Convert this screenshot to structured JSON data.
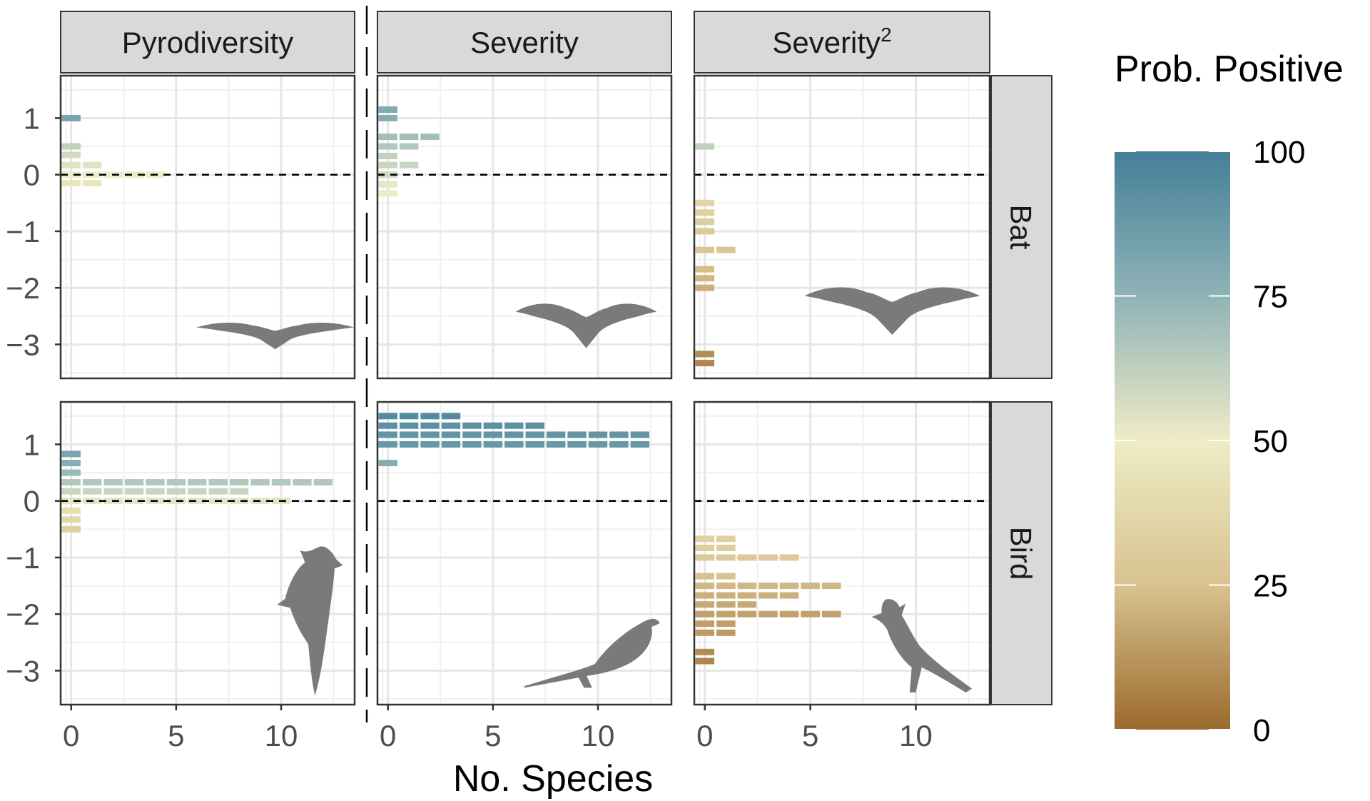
{
  "chart_data": {
    "type": "bar",
    "subtype": "stacked-dotplot-facet-grid",
    "xlabel": "No. Species",
    "ylabel": "",
    "x_ticks": [
      0,
      5,
      10
    ],
    "y_ticks": [
      1,
      0,
      -1,
      -2,
      -3
    ],
    "y_tick_labels": [
      "1",
      "0",
      "−1",
      "−2",
      "−3"
    ],
    "xlim": [
      -0.5,
      13.5
    ],
    "ylim": [
      -3.6,
      1.75
    ],
    "grid": true,
    "reference_line": {
      "y": 0,
      "style": "dashed"
    },
    "facet_columns": [
      {
        "label": "Pyrodiversity"
      },
      {
        "label": "Severity"
      },
      {
        "label": "Severity",
        "superscript": "2"
      }
    ],
    "facet_rows": [
      {
        "label": "Bat"
      },
      {
        "label": "Bird"
      }
    ],
    "legend": {
      "title": "Prob. Positive",
      "position": "right",
      "min": 0,
      "max": 100,
      "ticks": [
        100,
        75,
        50,
        25,
        0
      ],
      "colors": [
        "#9b6a2d",
        "#d8c28f",
        "#eeecc6",
        "#8fb3b6",
        "#447f98"
      ]
    },
    "panels": [
      {
        "row": "Bat",
        "col": "Pyrodiversity",
        "silhouette": "bat",
        "bins": [
          {
            "y": 1.0,
            "count": 1,
            "prob": 82
          },
          {
            "y": 0.5,
            "count": 1,
            "prob": 62
          },
          {
            "y": 0.35,
            "count": 1,
            "prob": 58
          },
          {
            "y": 0.17,
            "count": 2,
            "prob": 54
          },
          {
            "y": 0.0,
            "count": 5,
            "prob": 50
          },
          {
            "y": -0.15,
            "count": 2,
            "prob": 46
          }
        ]
      },
      {
        "row": "Bat",
        "col": "Severity",
        "silhouette": "bat",
        "bins": [
          {
            "y": 1.15,
            "count": 1,
            "prob": 80
          },
          {
            "y": 1.0,
            "count": 1,
            "prob": 78
          },
          {
            "y": 0.67,
            "count": 3,
            "prob": 70
          },
          {
            "y": 0.5,
            "count": 2,
            "prob": 66
          },
          {
            "y": 0.33,
            "count": 1,
            "prob": 62
          },
          {
            "y": 0.17,
            "count": 2,
            "prob": 60
          },
          {
            "y": 0.0,
            "count": 1,
            "prob": 58
          },
          {
            "y": -0.17,
            "count": 1,
            "prob": 52
          },
          {
            "y": -0.33,
            "count": 1,
            "prob": 50
          }
        ]
      },
      {
        "row": "Bat",
        "col": "Severity2",
        "silhouette": "bat",
        "bins": [
          {
            "y": 0.5,
            "count": 1,
            "prob": 62
          },
          {
            "y": -0.5,
            "count": 1,
            "prob": 36
          },
          {
            "y": -0.67,
            "count": 1,
            "prob": 34
          },
          {
            "y": -0.83,
            "count": 1,
            "prob": 32
          },
          {
            "y": -1.0,
            "count": 1,
            "prob": 30
          },
          {
            "y": -1.33,
            "count": 2,
            "prob": 28
          },
          {
            "y": -1.67,
            "count": 1,
            "prob": 24
          },
          {
            "y": -1.83,
            "count": 1,
            "prob": 22
          },
          {
            "y": -2.0,
            "count": 1,
            "prob": 20
          },
          {
            "y": -3.17,
            "count": 1,
            "prob": 10
          },
          {
            "y": -3.33,
            "count": 1,
            "prob": 8
          }
        ]
      },
      {
        "row": "Bird",
        "col": "Pyrodiversity",
        "silhouette": "woodpecker",
        "bins": [
          {
            "y": 0.83,
            "count": 1,
            "prob": 82
          },
          {
            "y": 0.67,
            "count": 1,
            "prob": 78
          },
          {
            "y": 0.5,
            "count": 1,
            "prob": 72
          },
          {
            "y": 0.33,
            "count": 13,
            "prob": 66
          },
          {
            "y": 0.17,
            "count": 9,
            "prob": 60
          },
          {
            "y": 0.0,
            "count": 11,
            "prob": 53
          },
          {
            "y": -0.17,
            "count": 1,
            "prob": 42
          },
          {
            "y": -0.33,
            "count": 1,
            "prob": 38
          },
          {
            "y": -0.5,
            "count": 1,
            "prob": 34
          }
        ]
      },
      {
        "row": "Bird",
        "col": "Severity",
        "silhouette": "sparrow",
        "bins": [
          {
            "y": 1.5,
            "count": 4,
            "prob": 94
          },
          {
            "y": 1.33,
            "count": 8,
            "prob": 92
          },
          {
            "y": 1.17,
            "count": 13,
            "prob": 90
          },
          {
            "y": 1.0,
            "count": 13,
            "prob": 88
          },
          {
            "y": 0.67,
            "count": 1,
            "prob": 78
          }
        ]
      },
      {
        "row": "Bird",
        "col": "Severity2",
        "silhouette": "cardinal",
        "bins": [
          {
            "y": -0.67,
            "count": 2,
            "prob": 34
          },
          {
            "y": -0.83,
            "count": 2,
            "prob": 32
          },
          {
            "y": -1.0,
            "count": 5,
            "prob": 30
          },
          {
            "y": -1.33,
            "count": 2,
            "prob": 25
          },
          {
            "y": -1.5,
            "count": 7,
            "prob": 22
          },
          {
            "y": -1.67,
            "count": 5,
            "prob": 20
          },
          {
            "y": -1.83,
            "count": 3,
            "prob": 18
          },
          {
            "y": -2.0,
            "count": 7,
            "prob": 16
          },
          {
            "y": -2.17,
            "count": 2,
            "prob": 15
          },
          {
            "y": -2.33,
            "count": 2,
            "prob": 14
          },
          {
            "y": -2.67,
            "count": 1,
            "prob": 10
          },
          {
            "y": -2.83,
            "count": 1,
            "prob": 8
          }
        ]
      }
    ]
  }
}
